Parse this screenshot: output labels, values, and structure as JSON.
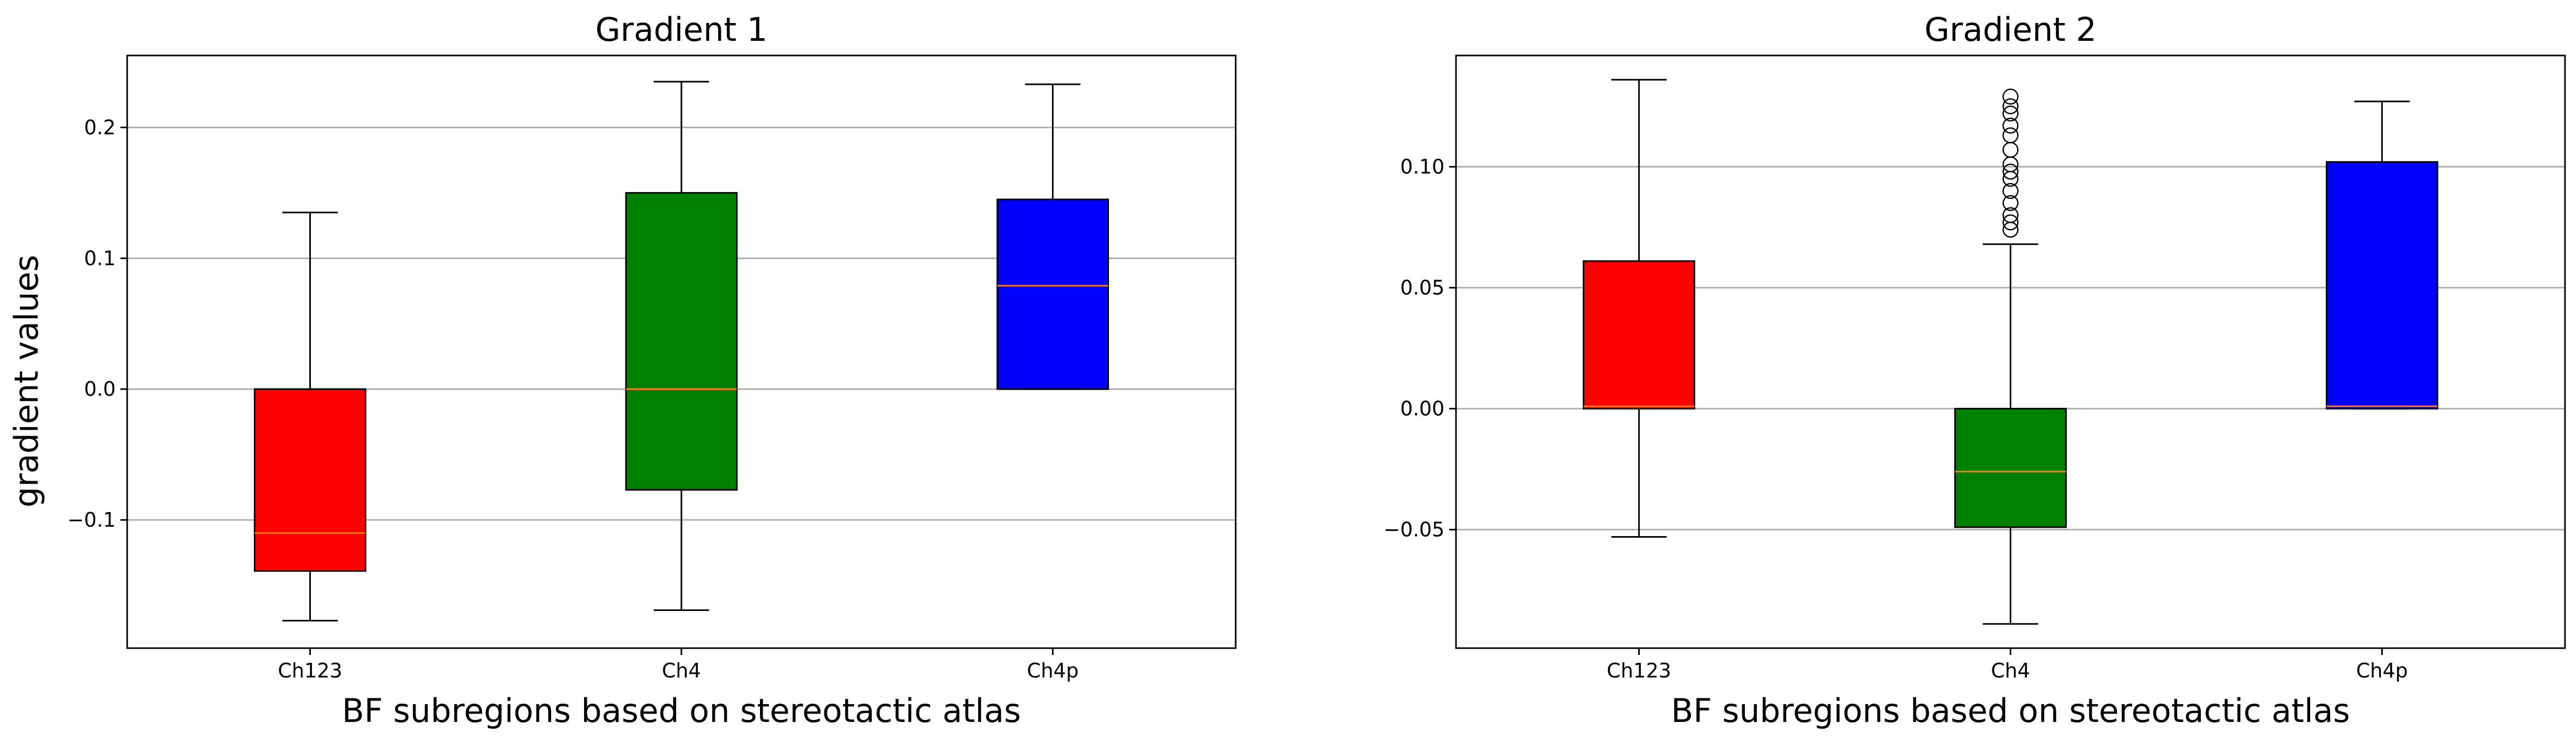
{
  "figure": {
    "shared_ylabel": "gradient values",
    "box_colors": {
      "Ch123": "#ff0000",
      "Ch4": "#008000",
      "Ch4p": "#0000ff"
    },
    "median_color": "#ff7f0e",
    "outlier_marker": "circle"
  },
  "chart_data": [
    {
      "type": "box",
      "title": "Gradient 1",
      "xlabel": "BF subregions based on stereotactic atlas",
      "ylabel": "gradient values",
      "categories": [
        "Ch123",
        "Ch4",
        "Ch4p"
      ],
      "yticks": [
        -0.1,
        0.0,
        0.1,
        0.2
      ],
      "ytick_labels": [
        "−0.1",
        "0.0",
        "0.1",
        "0.2"
      ],
      "ylim": [
        -0.198,
        0.255
      ],
      "grid": "y",
      "boxes": [
        {
          "name": "Ch123",
          "whislo": -0.177,
          "q1": -0.139,
          "med": -0.11,
          "q3": 0.0,
          "whishi": 0.135,
          "fliers": []
        },
        {
          "name": "Ch4",
          "whislo": -0.169,
          "q1": -0.077,
          "med": 0.0,
          "q3": 0.15,
          "whishi": 0.235,
          "fliers": []
        },
        {
          "name": "Ch4p",
          "whislo": 0.0,
          "q1": 0.0,
          "med": 0.079,
          "q3": 0.145,
          "whishi": 0.233,
          "fliers": []
        }
      ]
    },
    {
      "type": "box",
      "title": "Gradient 2",
      "xlabel": "BF subregions based on stereotactic atlas",
      "ylabel": "",
      "categories": [
        "Ch123",
        "Ch4",
        "Ch4p"
      ],
      "yticks": [
        -0.05,
        0.0,
        0.05,
        0.1
      ],
      "ytick_labels": [
        "−0.05",
        "0.00",
        "0.05",
        "0.10"
      ],
      "ylim": [
        -0.099,
        0.146
      ],
      "grid": "y",
      "boxes": [
        {
          "name": "Ch123",
          "whislo": -0.053,
          "q1": 0.0,
          "med": 0.001,
          "q3": 0.061,
          "whishi": 0.136,
          "fliers": []
        },
        {
          "name": "Ch4",
          "whislo": -0.089,
          "q1": -0.049,
          "med": -0.026,
          "q3": 0.0,
          "whishi": 0.068,
          "fliers": [
            0.074,
            0.077,
            0.08,
            0.085,
            0.09,
            0.095,
            0.098,
            0.101,
            0.107,
            0.113,
            0.117,
            0.122,
            0.125,
            0.129
          ]
        },
        {
          "name": "Ch4p",
          "whislo": 0.0,
          "q1": 0.0,
          "med": 0.001,
          "q3": 0.102,
          "whishi": 0.127,
          "fliers": []
        }
      ]
    }
  ]
}
